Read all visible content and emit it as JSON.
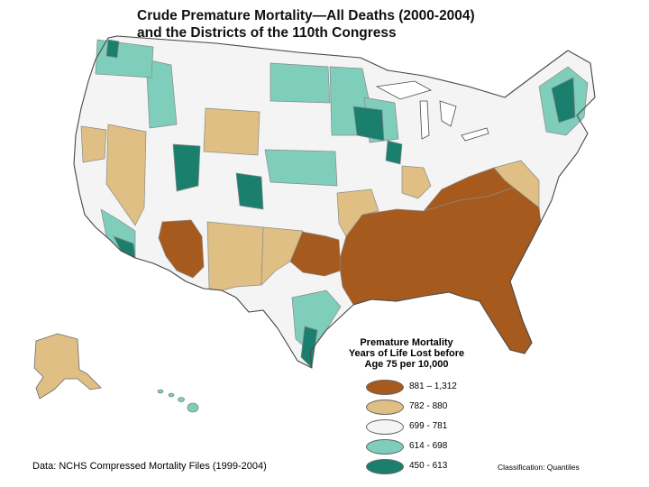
{
  "title": {
    "line1": "Crude Premature Mortality—All Deaths (2000-2004)",
    "line2": "and the Districts of the 110th Congress"
  },
  "legend": {
    "title_line1": "Premature Mortality",
    "title_line2": "Years of Life Lost before",
    "title_line3": "Age 75 per 10,000",
    "items": [
      {
        "label": "881 – 1,312",
        "color": "#a65a1e"
      },
      {
        "label": "782 - 880",
        "color": "#dfbf84"
      },
      {
        "label": "699 - 781",
        "color": "#f4f4f4"
      },
      {
        "label": "614 - 698",
        "color": "#7fcdbb"
      },
      {
        "label": "450 - 613",
        "color": "#1b7f6e"
      }
    ]
  },
  "source": "Data:  NCHS Compressed Mortality Files (1999-2004)",
  "classification": "Classification: Quantiles",
  "map_colors": {
    "border": "#8a8a8a",
    "outline": "#4a4a4a"
  }
}
